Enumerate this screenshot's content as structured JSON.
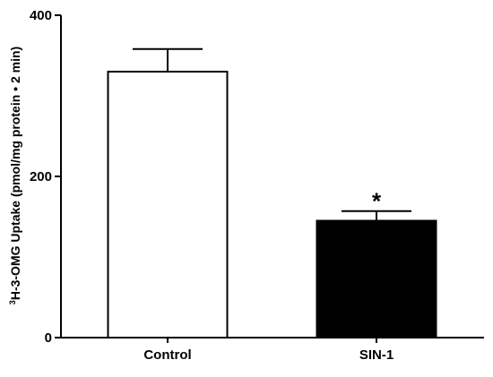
{
  "chart_data": {
    "type": "bar",
    "title": "",
    "xlabel": "",
    "ylabel_superscript": "3",
    "ylabel_main": "H-3-OMG Uptake (pmol/mg protein • 2 min)",
    "categories": [
      "Control",
      "SIN-1"
    ],
    "values": [
      330,
      145
    ],
    "errors": [
      28,
      12
    ],
    "bar_colors": [
      "#ffffff",
      "#000000"
    ],
    "bar_stroke": "#000000",
    "ylim": [
      0,
      400
    ],
    "yticks": [
      0,
      200,
      400
    ],
    "ytick_labels": [
      "0",
      "200",
      "400"
    ],
    "annotations": [
      {
        "text": "*",
        "category": "SIN-1"
      }
    ],
    "grid": false,
    "legend": "none"
  }
}
